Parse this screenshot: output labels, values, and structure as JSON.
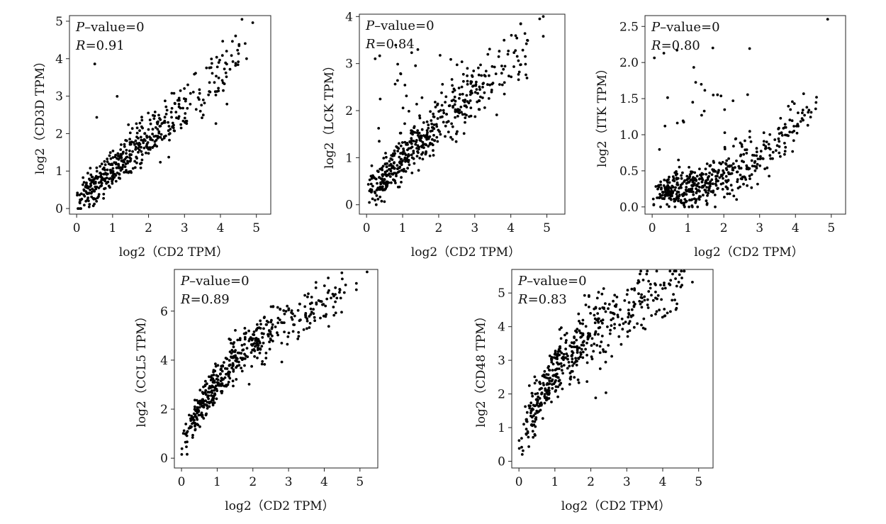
{
  "chart_data": [
    {
      "type": "scatter",
      "xlabel": "log2（CD2 TPM）",
      "ylabel": "log2（CD3D TPM）",
      "pvalue_label": "P–value=0",
      "r_label": "R=0.91",
      "xlim": [
        -0.2,
        5.4
      ],
      "ylim": [
        -0.15,
        5.15
      ],
      "xticks": [
        0,
        1,
        2,
        3,
        4,
        5
      ],
      "yticks": [
        0,
        1,
        2,
        3,
        4,
        5
      ],
      "x_tick_labels": [
        "0",
        "1",
        "2",
        "3",
        "4",
        "5"
      ],
      "y_tick_labels": [
        "0",
        "1",
        "2",
        "3",
        "4",
        "5"
      ],
      "n_points": 480,
      "trend": {
        "slope": 0.85,
        "intercept": 0.0,
        "noise": 0.35,
        "outliers": 3
      },
      "max_point": [
        4.6,
        5.05
      ]
    },
    {
      "type": "scatter",
      "xlabel": "log2（CD2 TPM）",
      "ylabel": "log2（LCK TPM）",
      "pvalue_label": "P–value=0",
      "r_label": "R=0.84",
      "xlim": [
        -0.2,
        5.5
      ],
      "ylim": [
        -0.2,
        4.05
      ],
      "xticks": [
        0,
        1,
        2,
        3,
        4,
        5
      ],
      "yticks": [
        0,
        1,
        2,
        3,
        4
      ],
      "x_tick_labels": [
        "0",
        "1",
        "2",
        "3",
        "4",
        "5"
      ],
      "y_tick_labels": [
        "0",
        "1",
        "2",
        "3",
        "4"
      ],
      "n_points": 480,
      "trend": {
        "slope": 0.72,
        "intercept": 0.05,
        "noise": 0.32,
        "outliers": 40
      },
      "max_point": [
        4.8,
        3.95
      ]
    },
    {
      "type": "scatter",
      "xlabel": "log2（CD2 TPM）",
      "ylabel": "log2（ITK TPM）",
      "pvalue_label": "P–value=0",
      "r_label": "R=0.80",
      "xlim": [
        -0.2,
        5.4
      ],
      "ylim": [
        -0.1,
        2.65
      ],
      "xticks": [
        0,
        1,
        2,
        3,
        4,
        5
      ],
      "yticks": [
        0.0,
        0.5,
        1.0,
        1.5,
        2.0,
        2.5
      ],
      "x_tick_labels": [
        "0",
        "1",
        "2",
        "3",
        "4",
        "5"
      ],
      "y_tick_labels": [
        "0.0",
        "0.5",
        "1.0",
        "1.5",
        "2.0",
        "2.5"
      ],
      "n_points": 480,
      "trend": {
        "curve": "exp",
        "a": 0.12,
        "b": 0.55,
        "noise": 0.18,
        "outliers": 30
      },
      "max_point": [
        4.9,
        2.6
      ]
    },
    {
      "type": "scatter",
      "xlabel": "log2（CD2 TPM）",
      "ylabel": "log2（CCL5 TPM）",
      "pvalue_label": "P–value=0",
      "r_label": "R=0.89",
      "xlim": [
        -0.2,
        5.5
      ],
      "ylim": [
        -0.4,
        7.7
      ],
      "xticks": [
        0,
        1,
        2,
        3,
        4,
        5
      ],
      "yticks": [
        0,
        2,
        4,
        6
      ],
      "x_tick_labels": [
        "0",
        "1",
        "2",
        "3",
        "4",
        "5"
      ],
      "y_tick_labels": [
        "0",
        "2",
        "4",
        "6"
      ],
      "n_points": 480,
      "trend": {
        "curve": "log",
        "a": 3.4,
        "b": 1.2,
        "noise": 0.5,
        "outliers": 4
      },
      "max_point": [
        5.2,
        7.6
      ]
    },
    {
      "type": "scatter",
      "xlabel": "log2（CD2 TPM）",
      "ylabel": "log2（CD48 TPM）",
      "pvalue_label": "P–value=0",
      "r_label": "R=0.83",
      "xlim": [
        -0.2,
        5.4
      ],
      "ylim": [
        -0.2,
        5.7
      ],
      "xticks": [
        0,
        1,
        2,
        3,
        4,
        5
      ],
      "yticks": [
        0,
        1,
        2,
        3,
        4,
        5
      ],
      "x_tick_labels": [
        "0",
        "1",
        "2",
        "3",
        "4",
        "5"
      ],
      "y_tick_labels": [
        "0",
        "1",
        "2",
        "3",
        "4",
        "5"
      ],
      "n_points": 480,
      "trend": {
        "curve": "log",
        "a": 2.4,
        "b": 1.5,
        "noise": 0.55,
        "outliers": 6
      },
      "max_point": [
        4.6,
        5.65
      ]
    }
  ]
}
